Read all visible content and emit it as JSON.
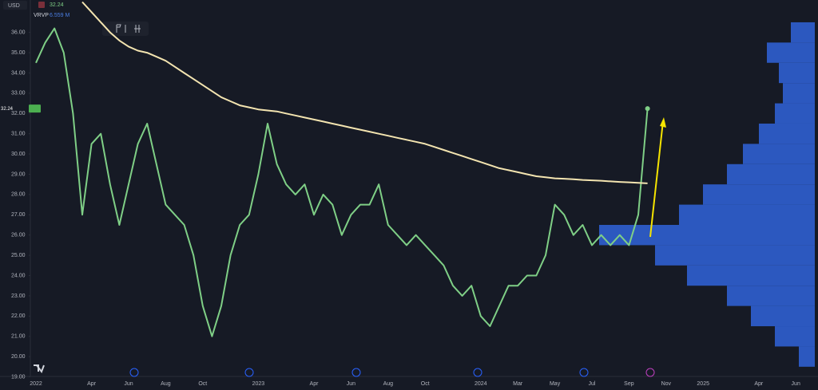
{
  "chart_data": {
    "type": "line",
    "currency": "USD",
    "indicator": "VRVP",
    "indicator_value": "6.559 M",
    "categories": [
      "2022",
      null,
      null,
      null,
      null,
      null,
      "Apr",
      null,
      null,
      null,
      "Jun",
      null,
      null,
      null,
      "Aug",
      null,
      null,
      null,
      "Oct",
      null,
      null,
      null,
      null,
      null,
      "2023",
      null,
      null,
      null,
      null,
      null,
      "Apr",
      null,
      null,
      null,
      "Jun",
      null,
      null,
      null,
      "Aug",
      null,
      null,
      null,
      "Oct",
      null,
      null,
      null,
      null,
      null,
      "2024",
      null,
      null,
      null,
      "Mar",
      null,
      null,
      null,
      "May",
      null,
      null,
      null,
      "Jul",
      null,
      null,
      null,
      "Sep",
      null,
      null,
      null,
      "Nov",
      null,
      null,
      null,
      "2025",
      null,
      null,
      null,
      null,
      null,
      "Apr",
      null,
      null,
      null,
      "Jun"
    ],
    "series": [
      {
        "color": "#7fcf86",
        "values": [
          34.5,
          35.5,
          36.2,
          35.0,
          32.0,
          27.0,
          30.5,
          31.0,
          28.5,
          26.5,
          28.5,
          30.5,
          31.5,
          29.5,
          27.5,
          27.0,
          26.5,
          25.0,
          22.5,
          21.0,
          22.5,
          25.0,
          26.5,
          27.0,
          29.0,
          31.5,
          29.5,
          28.5,
          28.0,
          28.5,
          27.0,
          28.0,
          27.5,
          26.0,
          27.0,
          27.5,
          27.5,
          28.5,
          26.5,
          26.0,
          25.5,
          26.0,
          25.5,
          25.0,
          24.5,
          23.5,
          23.0,
          23.5,
          22.0,
          21.5,
          22.5,
          23.5,
          23.5,
          24.0,
          24.0,
          25.0,
          27.5,
          27.0,
          26.0,
          26.5,
          25.5,
          26.0,
          25.5,
          26.0,
          25.5,
          27.0,
          32.24,
          null,
          null,
          null,
          null,
          null,
          null,
          null,
          null,
          null,
          null,
          null,
          null,
          null,
          null,
          null,
          null
        ]
      },
      {
        "color": "#f3e4b0",
        "values": [
          null,
          null,
          null,
          null,
          null,
          37.5,
          37.0,
          36.5,
          36.0,
          35.6,
          35.3,
          35.1,
          35.0,
          34.8,
          34.6,
          34.3,
          34.0,
          33.7,
          33.4,
          33.1,
          32.8,
          32.6,
          32.4,
          32.3,
          32.2,
          32.15,
          32.1,
          32.0,
          31.9,
          31.8,
          31.7,
          31.6,
          31.5,
          31.4,
          31.3,
          31.2,
          31.1,
          31.0,
          30.9,
          30.8,
          30.7,
          30.6,
          30.5,
          30.35,
          30.2,
          30.05,
          29.9,
          29.75,
          29.6,
          29.45,
          29.3,
          29.2,
          29.1,
          29.0,
          28.9,
          28.85,
          28.8,
          28.78,
          28.75,
          28.72,
          28.7,
          28.68,
          28.65,
          28.62,
          28.6,
          28.58,
          28.55,
          null,
          null,
          null,
          null,
          null,
          null,
          null,
          null,
          null,
          null,
          null,
          null,
          null,
          null,
          null,
          null
        ]
      }
    ],
    "volume_profile": {
      "color": "#2f5fd0",
      "prices": [
        20,
        21,
        22,
        23,
        24,
        25,
        26,
        27,
        28,
        29,
        30,
        31,
        32,
        33,
        34,
        35,
        36
      ],
      "values": [
        20,
        50,
        80,
        110,
        160,
        200,
        270,
        170,
        140,
        110,
        90,
        70,
        50,
        40,
        45,
        60,
        30
      ]
    },
    "ylim": [
      19.1,
      37.6
    ],
    "yticks": [
      {
        "value": 19,
        "label": "19.00"
      },
      {
        "value": 20,
        "label": "20.00"
      },
      {
        "value": 21,
        "label": "21.00"
      },
      {
        "value": 22,
        "label": "22.00"
      },
      {
        "value": 23,
        "label": "23.00"
      },
      {
        "value": 24,
        "label": "24.00"
      },
      {
        "value": 25,
        "label": "25.00"
      },
      {
        "value": 26,
        "label": "26.00"
      },
      {
        "value": 27,
        "label": "27.00"
      },
      {
        "value": 28,
        "label": "28.00"
      },
      {
        "value": 29,
        "label": "29.00"
      },
      {
        "value": 30,
        "label": "30.00"
      },
      {
        "value": 31,
        "label": "31.00"
      },
      {
        "value": 32,
        "label": "32.00"
      },
      {
        "value": 33,
        "label": "33.00"
      },
      {
        "value": 34,
        "label": "34.00"
      },
      {
        "value": 35,
        "label": "35.00"
      },
      {
        "value": 36,
        "label": "36.00"
      }
    ],
    "grid": false
  }
}
